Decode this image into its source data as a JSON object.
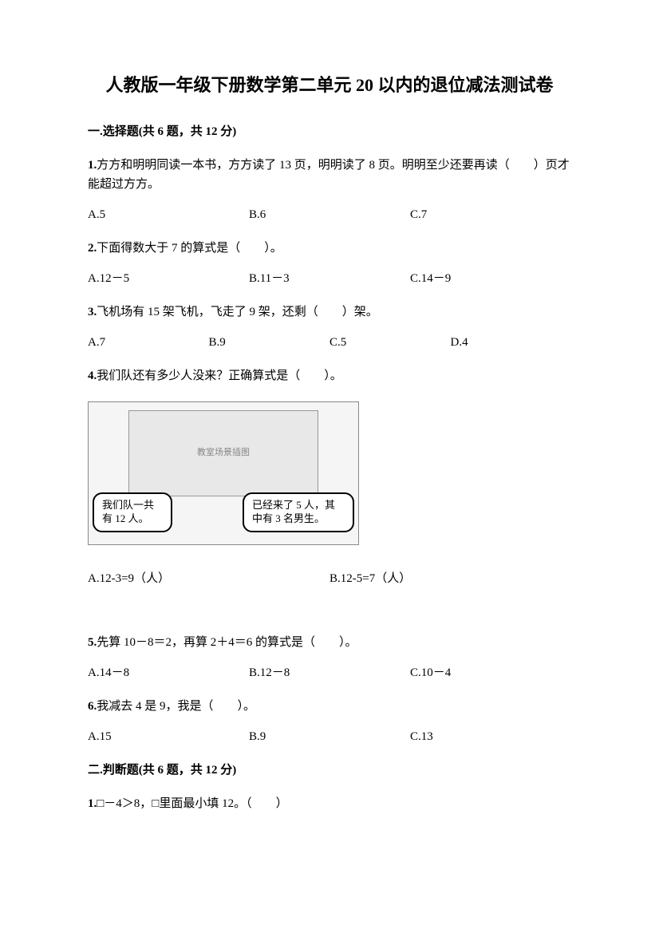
{
  "title": "人教版一年级下册数学第二单元 20 以内的退位减法测试卷",
  "section1": {
    "header": "一.选择题(共 6 题，共 12 分)",
    "questions": [
      {
        "num": "1.",
        "text": "方方和明明同读一本书，方方读了 13 页，明明读了 8 页。明明至少还要再读（　　）页才能超过方方。",
        "options": [
          "A.5",
          "B.6",
          "C.7"
        ],
        "cols": 3
      },
      {
        "num": "2.",
        "text": "下面得数大于 7 的算式是（　　）。",
        "options": [
          "A.12－5",
          "B.11－3",
          "C.14－9"
        ],
        "cols": 3
      },
      {
        "num": "3.",
        "text": "飞机场有 15 架飞机，飞走了 9 架，还剩（　　）架。",
        "options": [
          "A.7",
          "B.9",
          "C.5",
          "D.4"
        ],
        "cols": 4
      },
      {
        "num": "4.",
        "text": "我们队还有多少人没来？正确算式是（　　）。",
        "bubble_left": "我们队一共有 12 人。",
        "bubble_right": "已经来了 5 人，其中有 3 名男生。",
        "scene_hint": "教室场景插图",
        "options": [
          "A.12-3=9（人）",
          "B.12-5=7（人）"
        ],
        "cols": 2
      },
      {
        "num": "5.",
        "text": "先算 10－8＝2，再算 2＋4＝6 的算式是（　　）。",
        "options": [
          "A.14－8",
          "B.12－8",
          "C.10－4"
        ],
        "cols": 3
      },
      {
        "num": "6.",
        "text": "我减去 4 是 9，我是（　　）。",
        "options": [
          "A.15",
          "B.9",
          "C.13"
        ],
        "cols": 3
      }
    ]
  },
  "section2": {
    "header": "二.判断题(共 6 题，共 12 分)",
    "questions": [
      {
        "num": "1.",
        "text": "□－4＞8，□里面最小填 12。（　　）"
      }
    ]
  }
}
